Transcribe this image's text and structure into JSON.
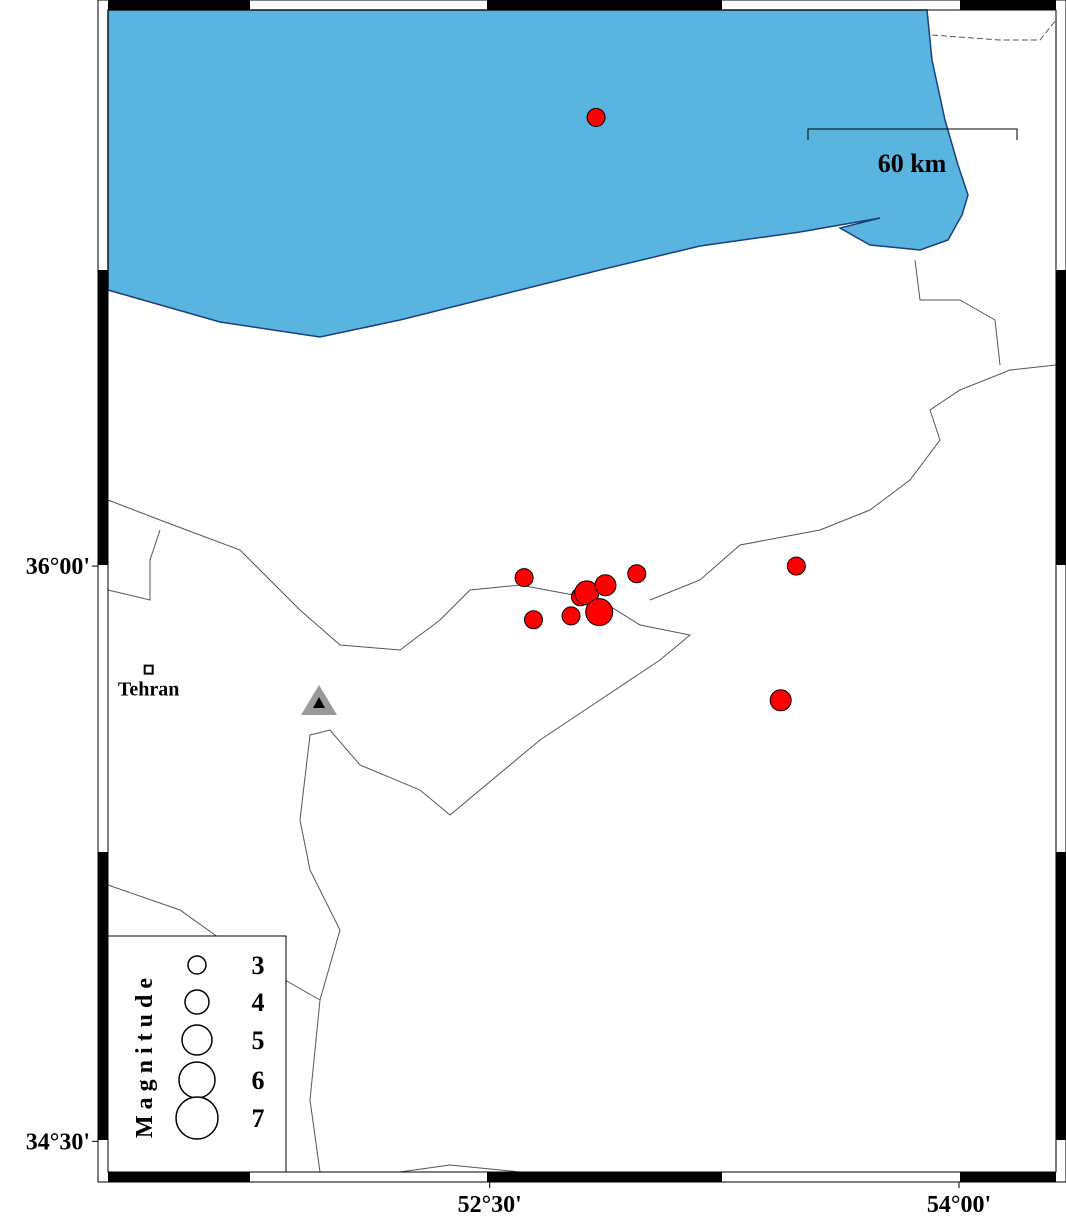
{
  "map": {
    "xlim": [
      51.28,
      54.31
    ],
    "ylim": [
      34.42,
      37.45
    ],
    "xticks": [
      {
        "value": 52.5,
        "label": "52°30'"
      },
      {
        "value": 54,
        "label": "54°00'"
      }
    ],
    "yticks": [
      {
        "value": 34.5,
        "label": "34°30'"
      },
      {
        "value": 36,
        "label": "36°00'"
      }
    ],
    "scale_bar": "60 km",
    "city": {
      "name": "Tehran",
      "lon": 51.41,
      "lat": 35.73
    },
    "event_color": "#ff0000",
    "events": [
      {
        "lon": 52.84,
        "lat": 37.17,
        "mag": 3
      },
      {
        "lon": 52.61,
        "lat": 35.97,
        "mag": 3
      },
      {
        "lon": 52.64,
        "lat": 35.86,
        "mag": 3
      },
      {
        "lon": 52.76,
        "lat": 35.87,
        "mag": 3
      },
      {
        "lon": 52.79,
        "lat": 35.92,
        "mag": 3
      },
      {
        "lon": 52.81,
        "lat": 35.93,
        "mag": 4
      },
      {
        "lon": 52.87,
        "lat": 35.95,
        "mag": 3.5
      },
      {
        "lon": 52.85,
        "lat": 35.88,
        "mag": 4.5
      },
      {
        "lon": 52.97,
        "lat": 35.98,
        "mag": 3
      },
      {
        "lon": 53.48,
        "lat": 36.0,
        "mag": 3
      },
      {
        "lon": 53.43,
        "lat": 35.65,
        "mag": 3.5
      }
    ],
    "legend": {
      "title": "Magnitude",
      "magnitudes": [
        3,
        4,
        5,
        6,
        7
      ]
    }
  }
}
